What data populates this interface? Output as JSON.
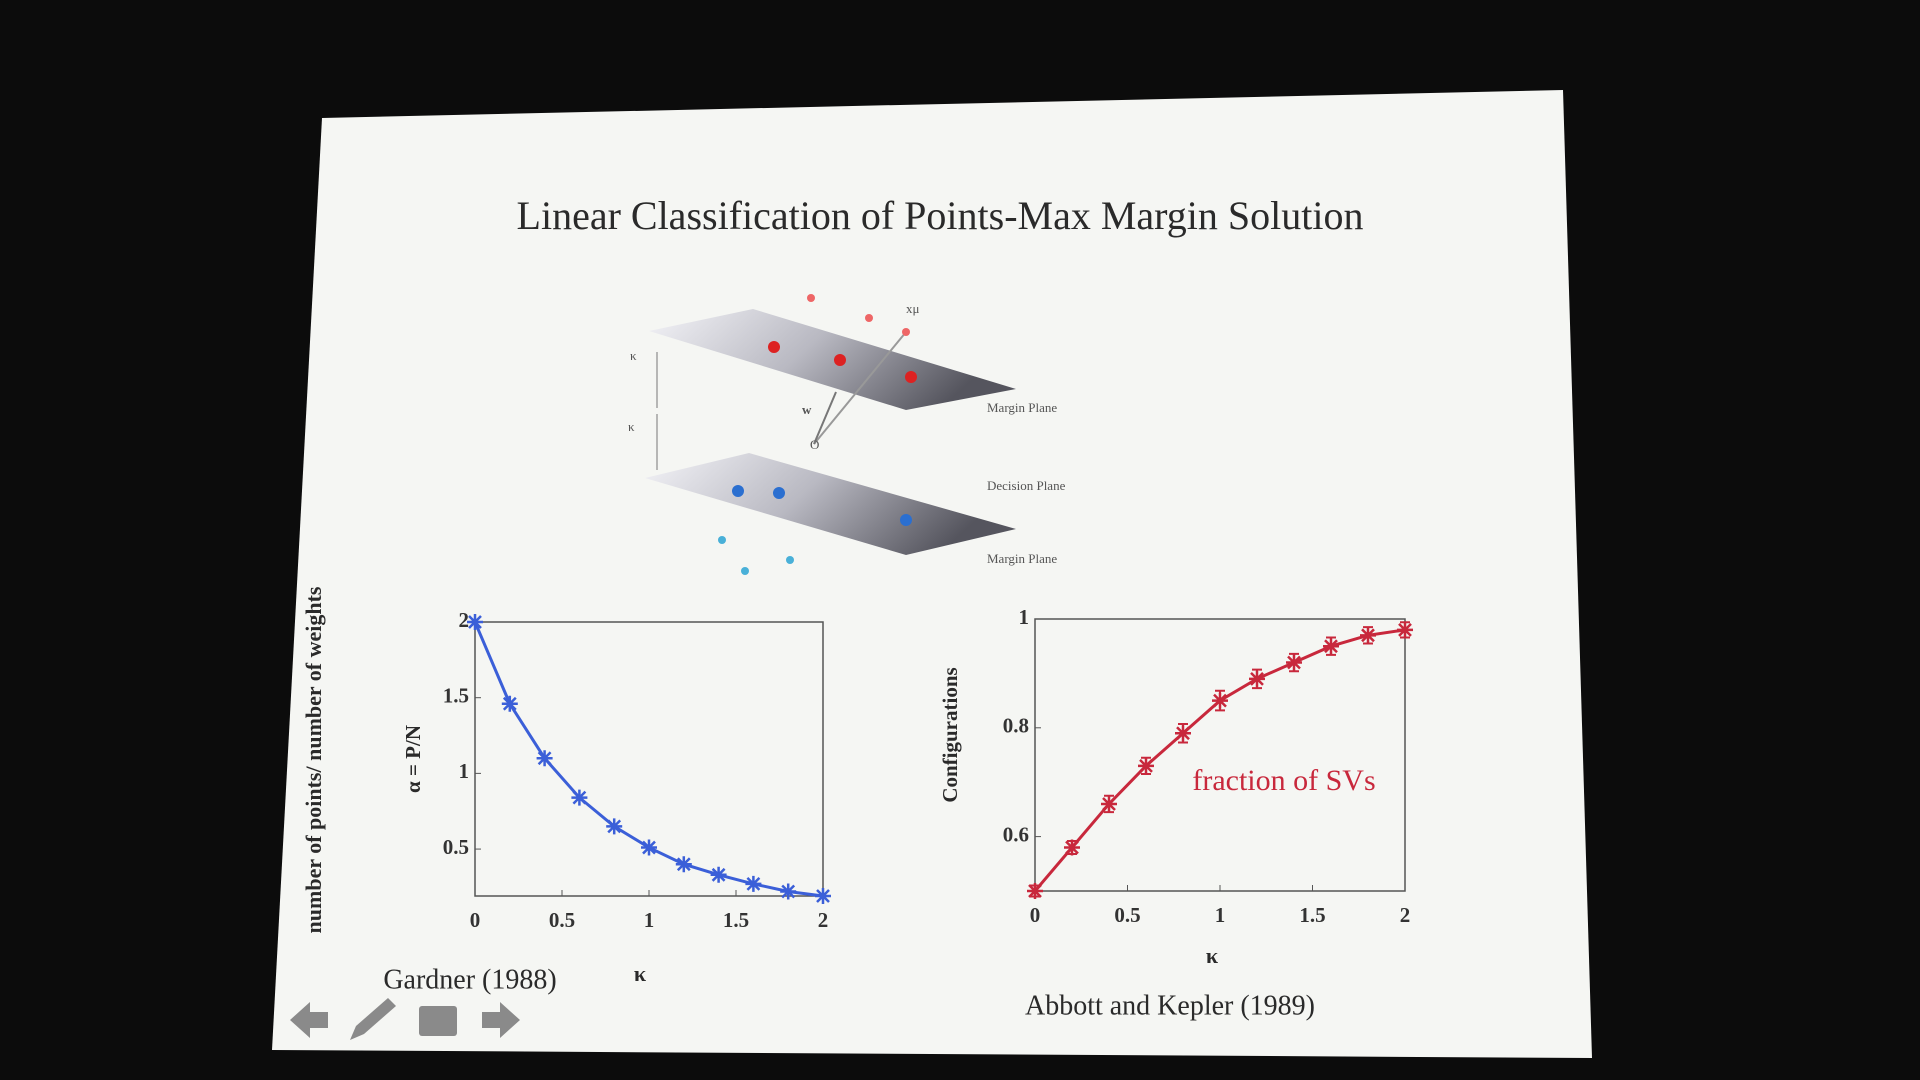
{
  "title": "Linear Classification of Points-Max Margin Solution",
  "side_label": "number of points/ number of weights",
  "diagram": {
    "point_label": "xμ",
    "margin_label_upper": "κ",
    "margin_label_lower": "κ",
    "weight_label": "w",
    "origin_label": "O",
    "planes": [
      "Margin Plane",
      "Decision Plane",
      "Margin Plane"
    ]
  },
  "chart_data": [
    {
      "type": "line",
      "xlabel": "κ",
      "ylabel": "α = P/N",
      "caption": "Gardner (1988)",
      "color": "#3b5fd8",
      "x": [
        0,
        0.2,
        0.4,
        0.6,
        0.8,
        1,
        1.2,
        1.4,
        1.6,
        1.8,
        2
      ],
      "values": [
        2,
        1.46,
        1.1,
        0.84,
        0.65,
        0.51,
        0.4,
        0.33,
        0.27,
        0.22,
        0.19
      ],
      "xlim": [
        0,
        2
      ],
      "ylim": [
        0.19,
        2
      ],
      "xticks": [
        0,
        0.5,
        1,
        1.5,
        2
      ],
      "yticks": [
        0.5,
        1,
        1.5,
        2
      ]
    },
    {
      "type": "line",
      "xlabel": "κ",
      "ylabel": "Configurations",
      "caption": "Abbott and Kepler  (1989)",
      "color": "#c8283c",
      "annotation": "fraction of SVs",
      "x": [
        0,
        0.2,
        0.4,
        0.6,
        0.8,
        1,
        1.2,
        1.4,
        1.6,
        1.8,
        2
      ],
      "values": [
        0.5,
        0.58,
        0.66,
        0.73,
        0.79,
        0.85,
        0.89,
        0.92,
        0.95,
        0.97,
        0.98
      ],
      "errors": [
        0.01,
        0.012,
        0.015,
        0.015,
        0.017,
        0.018,
        0.017,
        0.016,
        0.016,
        0.015,
        0.014
      ],
      "xlim": [
        0,
        2
      ],
      "ylim": [
        0.5,
        1
      ],
      "xticks": [
        0,
        0.5,
        1,
        1.5,
        2
      ],
      "yticks": [
        0.6,
        0.8,
        1
      ]
    }
  ]
}
